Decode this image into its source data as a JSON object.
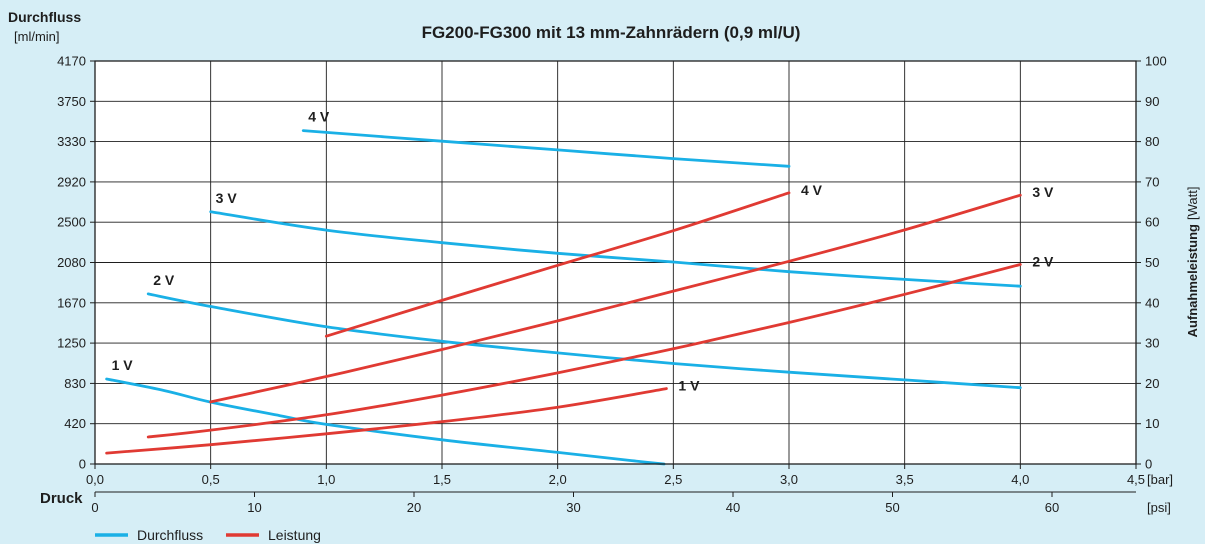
{
  "chart_data": {
    "type": "line",
    "title": "FG200-FG300 mit 13 mm-Zahnrädern (0,9 ml/U)",
    "y_left_label_line1": "Durchfluss",
    "y_left_label_line2": "[ml/min]",
    "y_right_label_bold": "Aufnahmeleistung",
    "y_right_label_unit": "[Watt]",
    "x_label": "Druck",
    "x_unit_bar": "[bar]",
    "x_unit_psi": "[psi]",
    "y_left_ticks": [
      "0",
      "420",
      "830",
      "1250",
      "1670",
      "2080",
      "2500",
      "2920",
      "3330",
      "3750",
      "4170"
    ],
    "y_left_range": [
      0,
      4170
    ],
    "y_right_ticks": [
      "0",
      "10",
      "20",
      "30",
      "40",
      "50",
      "60",
      "70",
      "80",
      "90",
      "100"
    ],
    "y_right_range": [
      0,
      100
    ],
    "x_bar_ticks": [
      "0,0",
      "0,5",
      "1,0",
      "1,5",
      "2,0",
      "2,5",
      "3,0",
      "3,5",
      "4,0",
      "4,5"
    ],
    "x_bar_range": [
      0,
      4.5
    ],
    "x_psi_ticks": [
      "0",
      "10",
      "20",
      "30",
      "40",
      "50",
      "60"
    ],
    "grid": true,
    "legend_position": "bottom-left",
    "legend": [
      {
        "label": "Durchfluss",
        "color": "#1ab0e6"
      },
      {
        "label": "Leistung",
        "color": "#e03a33"
      }
    ],
    "series": [
      {
        "name": "Durchfluss",
        "voltage": "1 V",
        "axis": "left",
        "color": "#1ab0e6",
        "points": [
          [
            0.05,
            880
          ],
          [
            0.3,
            760
          ],
          [
            0.5,
            640
          ],
          [
            0.8,
            500
          ],
          [
            1.0,
            410
          ],
          [
            1.5,
            250
          ],
          [
            2.0,
            120
          ],
          [
            2.3,
            40
          ],
          [
            2.46,
            0
          ]
        ]
      },
      {
        "name": "Durchfluss",
        "voltage": "2 V",
        "axis": "left",
        "color": "#1ab0e6",
        "points": [
          [
            0.23,
            1760
          ],
          [
            0.5,
            1630
          ],
          [
            1.0,
            1420
          ],
          [
            1.5,
            1270
          ],
          [
            2.0,
            1150
          ],
          [
            2.5,
            1040
          ],
          [
            3.0,
            950
          ],
          [
            3.5,
            870
          ],
          [
            4.0,
            790
          ]
        ]
      },
      {
        "name": "Durchfluss",
        "voltage": "3 V",
        "axis": "left",
        "color": "#1ab0e6",
        "points": [
          [
            0.5,
            2610
          ],
          [
            1.0,
            2420
          ],
          [
            1.5,
            2290
          ],
          [
            2.0,
            2180
          ],
          [
            2.5,
            2090
          ],
          [
            3.0,
            1990
          ],
          [
            3.5,
            1910
          ],
          [
            4.0,
            1840
          ]
        ]
      },
      {
        "name": "Durchfluss",
        "voltage": "4 V",
        "axis": "left",
        "color": "#1ab0e6",
        "points": [
          [
            0.9,
            3450
          ],
          [
            1.5,
            3340
          ],
          [
            2.0,
            3250
          ],
          [
            2.5,
            3160
          ],
          [
            3.0,
            3080
          ]
        ]
      },
      {
        "name": "Leistung",
        "voltage": "1 V",
        "axis": "right",
        "color": "#e03a33",
        "points": [
          [
            0.05,
            2.7
          ],
          [
            0.5,
            4.8
          ],
          [
            1.0,
            7.5
          ],
          [
            1.5,
            10.5
          ],
          [
            2.0,
            14.1
          ],
          [
            2.47,
            18.7
          ]
        ]
      },
      {
        "name": "Leistung",
        "voltage": "2 V",
        "axis": "right",
        "color": "#e03a33",
        "points": [
          [
            0.23,
            6.7
          ],
          [
            0.5,
            8.4
          ],
          [
            1.0,
            12.2
          ],
          [
            1.5,
            17.1
          ],
          [
            2.0,
            22.6
          ],
          [
            2.5,
            28.6
          ],
          [
            3.0,
            35.1
          ],
          [
            3.5,
            42.1
          ],
          [
            4.0,
            49.5
          ]
        ]
      },
      {
        "name": "Leistung",
        "voltage": "3 V",
        "axis": "right",
        "color": "#e03a33",
        "points": [
          [
            0.5,
            15.4
          ],
          [
            1.0,
            21.7
          ],
          [
            1.5,
            28.4
          ],
          [
            2.0,
            35.5
          ],
          [
            2.5,
            42.9
          ],
          [
            3.0,
            50.3
          ],
          [
            3.5,
            58.1
          ],
          [
            4.0,
            66.7
          ]
        ]
      },
      {
        "name": "Leistung",
        "voltage": "4 V",
        "axis": "right",
        "color": "#e03a33",
        "points": [
          [
            1.0,
            31.7
          ],
          [
            1.5,
            40.6
          ],
          [
            2.0,
            49.3
          ],
          [
            2.5,
            57.9
          ],
          [
            3.0,
            67.3
          ]
        ]
      }
    ],
    "voltage_labels": [
      {
        "text": "1 V",
        "color": "#1e1e1e"
      },
      {
        "text": "2 V",
        "color": "#1e1e1e"
      },
      {
        "text": "3 V",
        "color": "#1e1e1e"
      },
      {
        "text": "4 V",
        "color": "#1e1e1e"
      },
      {
        "text": "1 V",
        "color": "#1e1e1e"
      },
      {
        "text": "2 V",
        "color": "#1e1e1e"
      },
      {
        "text": "3 V",
        "color": "#1e1e1e"
      },
      {
        "text": "4 V",
        "color": "#1e1e1e"
      }
    ]
  }
}
